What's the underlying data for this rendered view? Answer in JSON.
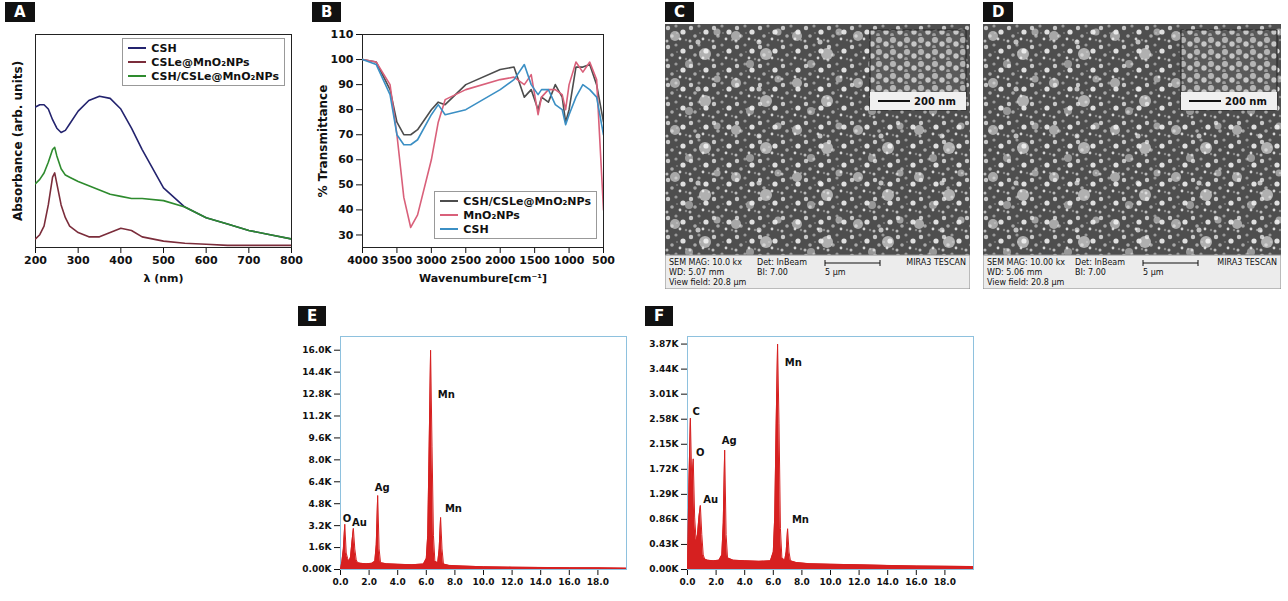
{
  "chart_data": [
    {
      "panel": "A",
      "type": "line",
      "x_label": "λ (nm)",
      "y_label": "Absorbance (arb. units)",
      "x": [
        200,
        210,
        220,
        230,
        240,
        245,
        250,
        260,
        270,
        280,
        300,
        325,
        350,
        375,
        400,
        425,
        450,
        500,
        550,
        600,
        650,
        700,
        750,
        800
      ],
      "series": [
        {
          "name": "CSH",
          "color": "#23236e",
          "values": [
            0.66,
            0.67,
            0.67,
            0.65,
            0.6,
            0.58,
            0.56,
            0.54,
            0.55,
            0.58,
            0.64,
            0.69,
            0.71,
            0.7,
            0.65,
            0.56,
            0.46,
            0.28,
            0.19,
            0.14,
            0.11,
            0.08,
            0.06,
            0.04
          ]
        },
        {
          "name": "CSLe@MnO₂NPs",
          "color": "#7b2d3b",
          "values": [
            0.04,
            0.06,
            0.1,
            0.2,
            0.33,
            0.35,
            0.3,
            0.2,
            0.14,
            0.1,
            0.07,
            0.05,
            0.05,
            0.07,
            0.09,
            0.08,
            0.05,
            0.03,
            0.02,
            0.015,
            0.01,
            0.01,
            0.01,
            0.01
          ]
        },
        {
          "name": "CSH/CSLe@MnO₂NPs",
          "color": "#2e8b2e",
          "values": [
            0.3,
            0.32,
            0.35,
            0.4,
            0.46,
            0.47,
            0.43,
            0.37,
            0.34,
            0.33,
            0.31,
            0.29,
            0.27,
            0.25,
            0.24,
            0.23,
            0.23,
            0.22,
            0.19,
            0.14,
            0.11,
            0.08,
            0.06,
            0.04
          ]
        }
      ],
      "xlim": [
        200,
        800
      ],
      "xticks": [
        200,
        300,
        400,
        500,
        600,
        700,
        800
      ],
      "ylim": [
        0,
        1
      ],
      "tick_labels": "x",
      "legend": "upper right"
    },
    {
      "panel": "B",
      "type": "line",
      "x_label": "Wavenumbure[cm⁻¹]",
      "y_label": "% Transmittance",
      "x": [
        4000,
        3800,
        3600,
        3500,
        3400,
        3300,
        3200,
        3000,
        2900,
        2800,
        2500,
        2000,
        1800,
        1650,
        1550,
        1450,
        1400,
        1300,
        1200,
        1100,
        1050,
        1000,
        900,
        800,
        700,
        600,
        500
      ],
      "series": [
        {
          "name": "CSH/CSLe@MnO₂NPs",
          "color": "#4d4d4d",
          "values": [
            100,
            99,
            88,
            75,
            70,
            70,
            72,
            80,
            83,
            82,
            90,
            96,
            97,
            85,
            88,
            80,
            85,
            83,
            90,
            85,
            75,
            80,
            97,
            97,
            98,
            90,
            75
          ]
        },
        {
          "name": "MnO₂NPs",
          "color": "#d9607a",
          "values": [
            100,
            99,
            90,
            70,
            45,
            33,
            38,
            60,
            75,
            84,
            88,
            92,
            93,
            90,
            94,
            78,
            85,
            88,
            88,
            86,
            80,
            90,
            99,
            95,
            99,
            92,
            40
          ]
        },
        {
          "name": "CSH",
          "color": "#3b8fc4",
          "values": [
            100,
            98,
            86,
            70,
            66,
            66,
            68,
            78,
            82,
            78,
            80,
            88,
            92,
            98,
            90,
            86,
            88,
            88,
            82,
            80,
            74,
            78,
            85,
            90,
            88,
            85,
            70
          ]
        }
      ],
      "xlim": [
        4000,
        500
      ],
      "xticks": [
        4000,
        3500,
        3000,
        2500,
        2000,
        1500,
        1000,
        500
      ],
      "ylim": [
        25,
        110
      ],
      "yticks": [
        30,
        40,
        50,
        60,
        70,
        80,
        90,
        100,
        110
      ],
      "legend": "lower right"
    },
    {
      "panel": "E",
      "type": "area",
      "color": "#d62020",
      "x": [
        0,
        0.1,
        0.2,
        0.3,
        0.4,
        0.5,
        0.6,
        0.7,
        0.8,
        0.9,
        1.0,
        1.1,
        1.2,
        1.4,
        1.8,
        2.2,
        2.4,
        2.5,
        2.6,
        2.7,
        2.8,
        3.2,
        4,
        5,
        5.8,
        6.0,
        6.1,
        6.2,
        6.3,
        6.4,
        6.5,
        6.6,
        6.8,
        6.9,
        7.0,
        7.1,
        7.2,
        7.6,
        8.5,
        10,
        12,
        14,
        16,
        18,
        20
      ],
      "values": [
        0,
        600,
        1500,
        3300,
        1200,
        800,
        600,
        900,
        2000,
        3000,
        1500,
        700,
        500,
        450,
        420,
        450,
        600,
        1800,
        5400,
        1500,
        500,
        420,
        380,
        350,
        400,
        800,
        2500,
        9000,
        16000,
        9000,
        2500,
        600,
        500,
        1500,
        3800,
        1500,
        400,
        300,
        250,
        200,
        170,
        150,
        130,
        120,
        100
      ],
      "annotations": [
        {
          "text": "O",
          "x": 0.15,
          "y": 3500
        },
        {
          "text": "Au",
          "x": 0.8,
          "y": 3200
        },
        {
          "text": "Ag",
          "x": 2.4,
          "y": 5700
        },
        {
          "text": "Mn",
          "x": 6.8,
          "y": 12500
        },
        {
          "text": "Mn",
          "x": 7.3,
          "y": 4200
        }
      ],
      "xlim": [
        0,
        20
      ],
      "xticks": [
        {
          "value": 0,
          "label": "0.0"
        },
        {
          "value": 2,
          "label": "2.0"
        },
        {
          "value": 4,
          "label": "4.0"
        },
        {
          "value": 6,
          "label": "6.0"
        },
        {
          "value": 8,
          "label": "8.0"
        },
        {
          "value": 10,
          "label": "10.0"
        },
        {
          "value": 12,
          "label": "12.0"
        },
        {
          "value": 14,
          "label": "14.0"
        },
        {
          "value": 16,
          "label": "16.0"
        },
        {
          "value": 18,
          "label": "18.0"
        }
      ],
      "ylim": [
        0,
        17000
      ],
      "yticks": [
        {
          "value": 0,
          "label": "0.00K"
        },
        {
          "value": 1600,
          "label": "1.6K"
        },
        {
          "value": 3200,
          "label": "3.2K"
        },
        {
          "value": 4800,
          "label": "4.8K"
        },
        {
          "value": 6400,
          "label": "6.4K"
        },
        {
          "value": 8000,
          "label": "8.0K"
        },
        {
          "value": 9600,
          "label": "9.6K"
        },
        {
          "value": 11200,
          "label": "11.2K"
        },
        {
          "value": 12800,
          "label": "12.8K"
        },
        {
          "value": 14400,
          "label": "14.4K"
        },
        {
          "value": 16000,
          "label": "16.0K"
        }
      ]
    },
    {
      "panel": "F",
      "type": "area",
      "color": "#d62020",
      "x": [
        0,
        0.1,
        0.2,
        0.3,
        0.4,
        0.5,
        0.6,
        0.7,
        0.8,
        0.9,
        1.0,
        1.1,
        1.2,
        1.4,
        1.8,
        2.2,
        2.4,
        2.5,
        2.6,
        2.7,
        2.8,
        3.2,
        4,
        5,
        5.8,
        6.0,
        6.1,
        6.2,
        6.3,
        6.4,
        6.5,
        6.6,
        6.8,
        6.9,
        7.0,
        7.1,
        7.2,
        7.6,
        8.5,
        10,
        12,
        14,
        16,
        18,
        20
      ],
      "values": [
        0,
        1500,
        2600,
        1500,
        1900,
        900,
        500,
        600,
        900,
        1100,
        600,
        250,
        180,
        160,
        150,
        160,
        250,
        800,
        2050,
        600,
        200,
        160,
        150,
        140,
        150,
        300,
        900,
        2500,
        3870,
        2500,
        700,
        200,
        160,
        300,
        700,
        300,
        150,
        120,
        100,
        90,
        80,
        70,
        60,
        55,
        50
      ],
      "annotations": [
        {
          "text": "C",
          "x": 0.35,
          "y": 2650
        },
        {
          "text": "O",
          "x": 0.6,
          "y": 1950
        },
        {
          "text": "Au",
          "x": 1.1,
          "y": 1150
        },
        {
          "text": "Ag",
          "x": 2.4,
          "y": 2150
        },
        {
          "text": "Mn",
          "x": 6.8,
          "y": 3500
        },
        {
          "text": "Mn",
          "x": 7.3,
          "y": 800
        }
      ],
      "xlim": [
        0,
        20
      ],
      "xticks": [
        {
          "value": 0,
          "label": "0.0"
        },
        {
          "value": 2,
          "label": "2.0"
        },
        {
          "value": 4,
          "label": "4.0"
        },
        {
          "value": 6,
          "label": "6.0"
        },
        {
          "value": 8,
          "label": "8.0"
        },
        {
          "value": 10,
          "label": "10.0"
        },
        {
          "value": 12,
          "label": "12.0"
        },
        {
          "value": 14,
          "label": "14.0"
        },
        {
          "value": 16,
          "label": "16.0"
        },
        {
          "value": 18,
          "label": "18.0"
        }
      ],
      "ylim": [
        0,
        4000
      ],
      "yticks": [
        {
          "value": 0,
          "label": "0.00K"
        },
        {
          "value": 430,
          "label": "0.43K"
        },
        {
          "value": 860,
          "label": "0.86K"
        },
        {
          "value": 1290,
          "label": "1.29K"
        },
        {
          "value": 1720,
          "label": "1.72K"
        },
        {
          "value": 2150,
          "label": "2.15K"
        },
        {
          "value": 2580,
          "label": "2.58K"
        },
        {
          "value": 3010,
          "label": "3.01K"
        },
        {
          "value": 3440,
          "label": "3.44K"
        },
        {
          "value": 3870,
          "label": "3.87K"
        }
      ]
    }
  ],
  "micrographs": [
    {
      "panel": "C",
      "scale_bar": "200 nm",
      "info": {
        "mag": "SEM MAG: 10.0 kx",
        "detector": "Det: InBeam",
        "wd": "WD: 5.07 mm",
        "bi": "BI: 7.00",
        "view_field": "View field: 20.8 μm",
        "bar": "5 μm",
        "instrument": "MIRA3 TESCAN"
      }
    },
    {
      "panel": "D",
      "scale_bar": "200 nm",
      "info": {
        "mag": "SEM MAG: 10.00 kx",
        "detector": "Det: InBeam",
        "wd": "WD: 5.06 mm",
        "bi": "BI: 7.00",
        "view_field": "View field: 20.8 μm",
        "bar": "5 μm",
        "instrument": "MIRA3 TESCAN"
      }
    }
  ]
}
